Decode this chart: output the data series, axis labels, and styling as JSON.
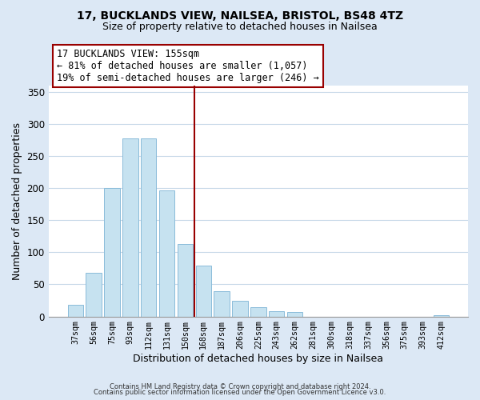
{
  "title1": "17, BUCKLANDS VIEW, NAILSEA, BRISTOL, BS48 4TZ",
  "title2": "Size of property relative to detached houses in Nailsea",
  "xlabel": "Distribution of detached houses by size in Nailsea",
  "ylabel": "Number of detached properties",
  "footer1": "Contains HM Land Registry data © Crown copyright and database right 2024.",
  "footer2": "Contains public sector information licensed under the Open Government Licence v3.0.",
  "bar_labels": [
    "37sqm",
    "56sqm",
    "75sqm",
    "93sqm",
    "112sqm",
    "131sqm",
    "150sqm",
    "168sqm",
    "187sqm",
    "206sqm",
    "225sqm",
    "243sqm",
    "262sqm",
    "281sqm",
    "300sqm",
    "318sqm",
    "337sqm",
    "356sqm",
    "375sqm",
    "393sqm",
    "412sqm"
  ],
  "bar_values": [
    18,
    68,
    200,
    277,
    277,
    196,
    113,
    79,
    40,
    25,
    14,
    8,
    7,
    0,
    0,
    0,
    0,
    0,
    0,
    0,
    2
  ],
  "bar_color": "#c6e2f0",
  "bar_edge_color": "#8bbcda",
  "annotation_title": "17 BUCKLANDS VIEW: 155sqm",
  "annotation_line1": "← 81% of detached houses are smaller (1,057)",
  "annotation_line2": "19% of semi-detached houses are larger (246) →",
  "vline_x_index": 6.5,
  "vline_color": "#990000",
  "annotation_box_color": "#ffffff",
  "annotation_box_edge": "#990000",
  "ylim": [
    0,
    360
  ],
  "yticks": [
    0,
    50,
    100,
    150,
    200,
    250,
    300,
    350
  ],
  "fig_bg_color": "#dce8f5",
  "plot_bg_color": "#ffffff",
  "grid_color": "#c8d8e8"
}
